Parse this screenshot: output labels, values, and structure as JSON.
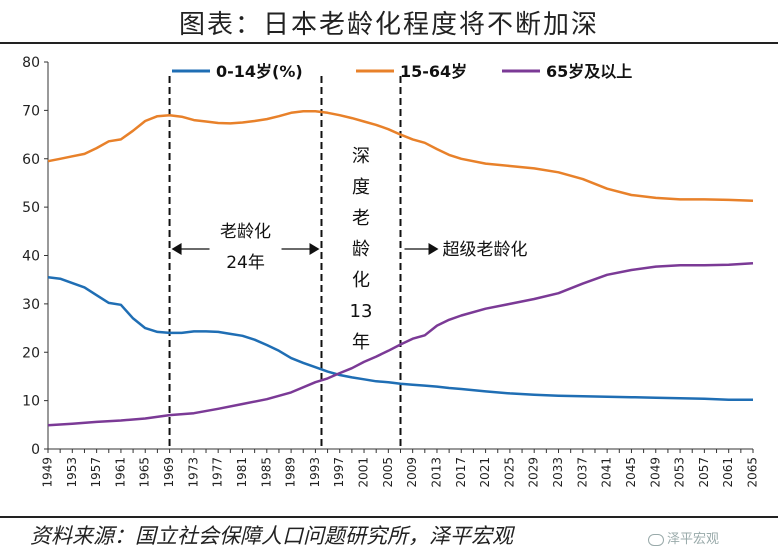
{
  "title": "图表：日本老龄化程度将不断加深",
  "footer": "资料来源：国立社会保障人口问题研究所，泽平宏观",
  "watermark": "泽平宏观",
  "chart_data": {
    "type": "line",
    "ylim": [
      0,
      80
    ],
    "yticks": [
      0,
      10,
      20,
      30,
      40,
      50,
      60,
      70,
      80
    ],
    "xlim": [
      1949,
      2065
    ],
    "xticks": [
      1949,
      1953,
      1957,
      1961,
      1965,
      1969,
      1973,
      1977,
      1981,
      1985,
      1989,
      1993,
      1997,
      2001,
      2005,
      2009,
      2013,
      2017,
      2021,
      2025,
      2029,
      2033,
      2037,
      2041,
      2045,
      2049,
      2053,
      2057,
      2061,
      2065
    ],
    "series": [
      {
        "name": "0-14岁(%)",
        "color": "#1f6eb4",
        "points": [
          [
            1949,
            35.5
          ],
          [
            1951,
            35.2
          ],
          [
            1953,
            34.3
          ],
          [
            1955,
            33.4
          ],
          [
            1957,
            31.8
          ],
          [
            1959,
            30.2
          ],
          [
            1961,
            29.8
          ],
          [
            1963,
            27.0
          ],
          [
            1965,
            25.0
          ],
          [
            1967,
            24.2
          ],
          [
            1969,
            24.0
          ],
          [
            1971,
            24.0
          ],
          [
            1973,
            24.3
          ],
          [
            1975,
            24.3
          ],
          [
            1977,
            24.2
          ],
          [
            1979,
            23.8
          ],
          [
            1981,
            23.4
          ],
          [
            1983,
            22.6
          ],
          [
            1985,
            21.5
          ],
          [
            1987,
            20.3
          ],
          [
            1989,
            18.8
          ],
          [
            1991,
            17.8
          ],
          [
            1993,
            16.9
          ],
          [
            1995,
            16.0
          ],
          [
            1997,
            15.3
          ],
          [
            1999,
            14.8
          ],
          [
            2001,
            14.4
          ],
          [
            2003,
            14.0
          ],
          [
            2005,
            13.8
          ],
          [
            2007,
            13.5
          ],
          [
            2009,
            13.3
          ],
          [
            2011,
            13.1
          ],
          [
            2013,
            12.9
          ],
          [
            2015,
            12.6
          ],
          [
            2017,
            12.4
          ],
          [
            2021,
            11.9
          ],
          [
            2025,
            11.5
          ],
          [
            2029,
            11.2
          ],
          [
            2033,
            11.0
          ],
          [
            2037,
            10.9
          ],
          [
            2041,
            10.8
          ],
          [
            2045,
            10.7
          ],
          [
            2049,
            10.6
          ],
          [
            2053,
            10.5
          ],
          [
            2057,
            10.4
          ],
          [
            2061,
            10.2
          ],
          [
            2065,
            10.2
          ]
        ]
      },
      {
        "name": "15-64岁",
        "color": "#e8812a",
        "points": [
          [
            1949,
            59.5
          ],
          [
            1951,
            60.0
          ],
          [
            1953,
            60.5
          ],
          [
            1955,
            61.0
          ],
          [
            1957,
            62.2
          ],
          [
            1959,
            63.6
          ],
          [
            1961,
            64.0
          ],
          [
            1963,
            65.8
          ],
          [
            1965,
            67.8
          ],
          [
            1967,
            68.8
          ],
          [
            1969,
            69.0
          ],
          [
            1971,
            68.7
          ],
          [
            1973,
            68.0
          ],
          [
            1975,
            67.7
          ],
          [
            1977,
            67.4
          ],
          [
            1979,
            67.3
          ],
          [
            1981,
            67.5
          ],
          [
            1983,
            67.8
          ],
          [
            1985,
            68.2
          ],
          [
            1987,
            68.8
          ],
          [
            1989,
            69.5
          ],
          [
            1991,
            69.8
          ],
          [
            1993,
            69.8
          ],
          [
            1995,
            69.5
          ],
          [
            1997,
            69.0
          ],
          [
            1999,
            68.4
          ],
          [
            2001,
            67.7
          ],
          [
            2003,
            67.0
          ],
          [
            2005,
            66.1
          ],
          [
            2007,
            65.0
          ],
          [
            2009,
            64.0
          ],
          [
            2011,
            63.3
          ],
          [
            2013,
            62.0
          ],
          [
            2015,
            60.8
          ],
          [
            2017,
            60.0
          ],
          [
            2021,
            59.0
          ],
          [
            2025,
            58.5
          ],
          [
            2029,
            58.0
          ],
          [
            2033,
            57.2
          ],
          [
            2037,
            55.8
          ],
          [
            2041,
            53.8
          ],
          [
            2045,
            52.5
          ],
          [
            2049,
            51.9
          ],
          [
            2053,
            51.6
          ],
          [
            2057,
            51.6
          ],
          [
            2061,
            51.5
          ],
          [
            2065,
            51.3
          ]
        ]
      },
      {
        "name": "65岁及以上",
        "color": "#7b3a96",
        "points": [
          [
            1949,
            4.9
          ],
          [
            1953,
            5.2
          ],
          [
            1957,
            5.6
          ],
          [
            1961,
            5.9
          ],
          [
            1965,
            6.3
          ],
          [
            1969,
            7.0
          ],
          [
            1973,
            7.4
          ],
          [
            1977,
            8.3
          ],
          [
            1981,
            9.3
          ],
          [
            1985,
            10.3
          ],
          [
            1989,
            11.7
          ],
          [
            1993,
            13.8
          ],
          [
            1995,
            14.6
          ],
          [
            1997,
            15.7
          ],
          [
            1999,
            16.7
          ],
          [
            2001,
            18.0
          ],
          [
            2003,
            19.1
          ],
          [
            2005,
            20.3
          ],
          [
            2007,
            21.6
          ],
          [
            2009,
            22.8
          ],
          [
            2011,
            23.5
          ],
          [
            2013,
            25.5
          ],
          [
            2015,
            26.7
          ],
          [
            2017,
            27.6
          ],
          [
            2021,
            29.0
          ],
          [
            2025,
            30.0
          ],
          [
            2029,
            31.0
          ],
          [
            2033,
            32.2
          ],
          [
            2037,
            34.2
          ],
          [
            2041,
            36.0
          ],
          [
            2045,
            37.0
          ],
          [
            2049,
            37.7
          ],
          [
            2053,
            38.0
          ],
          [
            2057,
            38.0
          ],
          [
            2061,
            38.1
          ],
          [
            2065,
            38.4
          ]
        ]
      }
    ],
    "vlines": [
      1969,
      1994,
      2007
    ],
    "annotations": {
      "left_line1": "老龄化",
      "left_line2": "24年",
      "middle_chars": [
        "深",
        "度",
        "老",
        "龄",
        "化",
        "13",
        "年"
      ],
      "right_label": "超级老龄化"
    }
  }
}
